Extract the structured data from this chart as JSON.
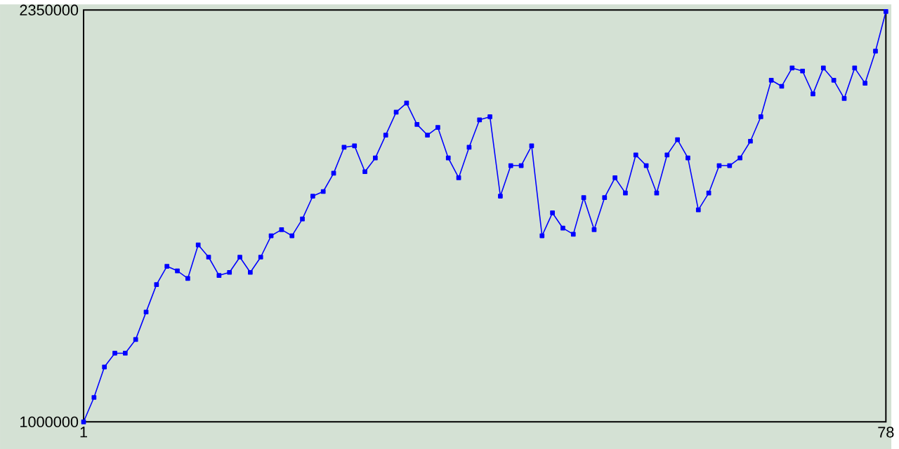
{
  "chart_data": {
    "type": "line",
    "marker": "square",
    "line_style": "solid",
    "color": "#0000ff",
    "x": [
      1,
      2,
      3,
      4,
      5,
      6,
      7,
      8,
      9,
      10,
      11,
      12,
      13,
      14,
      15,
      16,
      17,
      18,
      19,
      20,
      21,
      22,
      23,
      24,
      25,
      26,
      27,
      28,
      29,
      30,
      31,
      32,
      33,
      34,
      35,
      36,
      37,
      38,
      39,
      40,
      41,
      42,
      43,
      44,
      45,
      46,
      47,
      48,
      49,
      50,
      51,
      52,
      53,
      54,
      55,
      56,
      57,
      58,
      59,
      60,
      61,
      62,
      63,
      64,
      65,
      66,
      67,
      68,
      69,
      70,
      71,
      72,
      73,
      74,
      75,
      76,
      77,
      78
    ],
    "values": [
      1000000,
      1080000,
      1180000,
      1225000,
      1225000,
      1270000,
      1360000,
      1450000,
      1510000,
      1495000,
      1470000,
      1580000,
      1540000,
      1480000,
      1490000,
      1540000,
      1490000,
      1540000,
      1610000,
      1630000,
      1610000,
      1665000,
      1740000,
      1755000,
      1815000,
      1900000,
      1905000,
      1820000,
      1865000,
      1940000,
      2015000,
      2045000,
      1975000,
      1940000,
      1965000,
      1865000,
      1800000,
      1900000,
      1990000,
      2000000,
      1740000,
      1840000,
      1840000,
      1905000,
      1610000,
      1685000,
      1635000,
      1615000,
      1735000,
      1630000,
      1735000,
      1800000,
      1750000,
      1875000,
      1840000,
      1750000,
      1875000,
      1925000,
      1865000,
      1695000,
      1750000,
      1840000,
      1840000,
      1865000,
      1920000,
      2000000,
      2120000,
      2100000,
      2160000,
      2150000,
      2075000,
      2160000,
      2120000,
      2060000,
      2160000,
      2110000,
      2215000,
      2345000
    ],
    "xlim": [
      1,
      78
    ],
    "ylim": [
      1000000,
      2350000
    ],
    "xticks": [
      1,
      78
    ],
    "yticks": [
      1000000,
      2350000
    ]
  }
}
